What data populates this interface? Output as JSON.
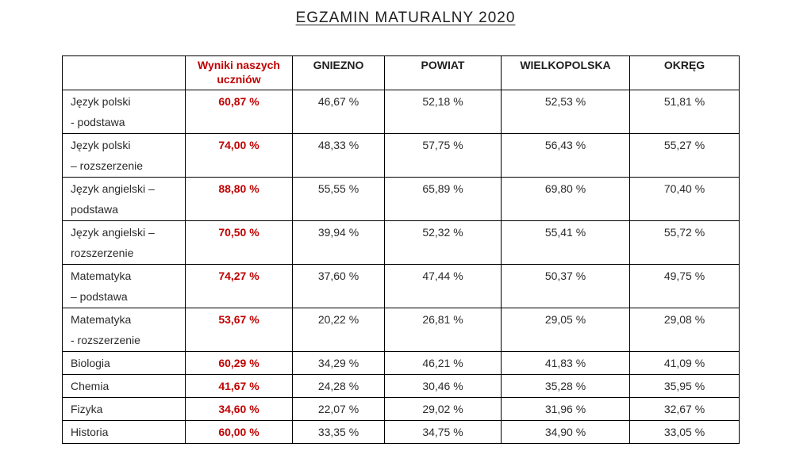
{
  "page": {
    "title": "EGZAMIN MATURALNY 2020"
  },
  "colors": {
    "accent": "#c00000",
    "text": "#2b2b2b",
    "border": "#000000"
  },
  "table": {
    "headers": [
      {
        "key": "subject",
        "label": "",
        "accent": false
      },
      {
        "key": "our",
        "label": "Wyniki naszych uczniów",
        "accent": true
      },
      {
        "key": "gniezno",
        "label": "GNIEZNO",
        "accent": false
      },
      {
        "key": "powiat",
        "label": "POWIAT",
        "accent": false
      },
      {
        "key": "wielkopolska",
        "label": "WIELKOPOLSKA",
        "accent": false
      },
      {
        "key": "okreg",
        "label": "OKRĘG",
        "accent": false
      }
    ],
    "rows": [
      {
        "subject": "Język polski\n- podstawa",
        "our": "60,87 %",
        "gniezno": "46,67 %",
        "powiat": "52,18 %",
        "wielkopolska": "52,53 %",
        "okreg": "51,81 %"
      },
      {
        "subject": "Język polski\n– rozszerzenie",
        "our": "74,00 %",
        "gniezno": "48,33 %",
        "powiat": "57,75 %",
        "wielkopolska": "56,43 %",
        "okreg": "55,27 %"
      },
      {
        "subject": "Język angielski –\npodstawa",
        "our": "88,80 %",
        "gniezno": "55,55 %",
        "powiat": "65,89 %",
        "wielkopolska": "69,80 %",
        "okreg": "70,40 %"
      },
      {
        "subject": "Język angielski –\nrozszerzenie",
        "our": "70,50 %",
        "gniezno": "39,94 %",
        "powiat": "52,32 %",
        "wielkopolska": "55,41 %",
        "okreg": "55,72 %"
      },
      {
        "subject": "Matematyka\n– podstawa",
        "our": "74,27 %",
        "gniezno": "37,60 %",
        "powiat": "47,44 %",
        "wielkopolska": "50,37 %",
        "okreg": "49,75 %"
      },
      {
        "subject": "Matematyka\n- rozszerzenie",
        "our": "53,67 %",
        "gniezno": "20,22 %",
        "powiat": "26,81 %",
        "wielkopolska": "29,05 %",
        "okreg": "29,08 %"
      },
      {
        "subject": "Biologia",
        "our": "60,29 %",
        "gniezno": "34,29 %",
        "powiat": "46,21 %",
        "wielkopolska": "41,83 %",
        "okreg": "41,09 %"
      },
      {
        "subject": "Chemia",
        "our": "41,67 %",
        "gniezno": "24,28 %",
        "powiat": "30,46 %",
        "wielkopolska": "35,28 %",
        "okreg": "35,95 %"
      },
      {
        "subject": "Fizyka",
        "our": "34,60 %",
        "gniezno": "22,07 %",
        "powiat": "29,02 %",
        "wielkopolska": "31,96 %",
        "okreg": "32,67 %"
      },
      {
        "subject": "Historia",
        "our": "60,00 %",
        "gniezno": "33,35 %",
        "powiat": "34,75 %",
        "wielkopolska": "34,90 %",
        "okreg": "33,05 %"
      }
    ]
  }
}
